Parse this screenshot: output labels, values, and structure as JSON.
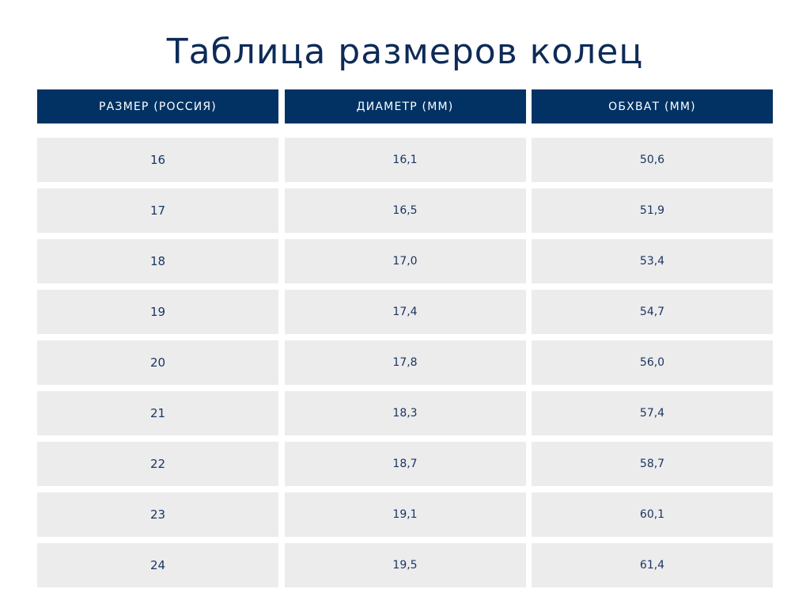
{
  "title": "Таблица размеров колец",
  "table": {
    "headers": [
      "РАЗМЕР (РОССИЯ)",
      "ДИАМЕТР (ММ)",
      "ОБХВАТ (ММ)"
    ],
    "rows": [
      [
        "16",
        "16,1",
        "50,6"
      ],
      [
        "17",
        "16,5",
        "51,9"
      ],
      [
        "18",
        "17,0",
        "53,4"
      ],
      [
        "19",
        "17,4",
        "54,7"
      ],
      [
        "20",
        "17,8",
        "56,0"
      ],
      [
        "21",
        "18,3",
        "57,4"
      ],
      [
        "22",
        "18,7",
        "58,7"
      ],
      [
        "23",
        "19,1",
        "60,1"
      ],
      [
        "24",
        "19,5",
        "61,4"
      ]
    ]
  },
  "colors": {
    "header_bg": "#023264",
    "cell_bg": "#ececec",
    "text": "#1a3563"
  }
}
